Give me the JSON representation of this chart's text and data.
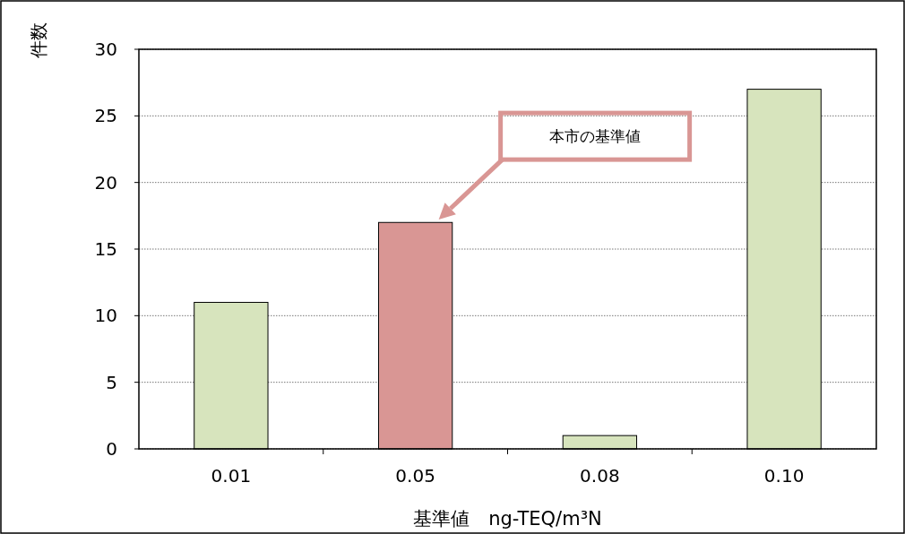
{
  "chart_data": {
    "type": "bar",
    "ylabel": "件数",
    "xlabel": "基準値　ng-TEQ/m³N",
    "categories": [
      "0.01",
      "0.05",
      "0.08",
      "0.10"
    ],
    "values": [
      11,
      17,
      1,
      27
    ],
    "colors": [
      "#d7e4bd",
      "#d99694",
      "#d7e4bd",
      "#d7e4bd"
    ],
    "ylim": [
      0,
      30
    ],
    "yticks": [
      0,
      5,
      10,
      15,
      20,
      25,
      30
    ],
    "grid": "y",
    "annotations": [
      "本市の基準値"
    ]
  }
}
